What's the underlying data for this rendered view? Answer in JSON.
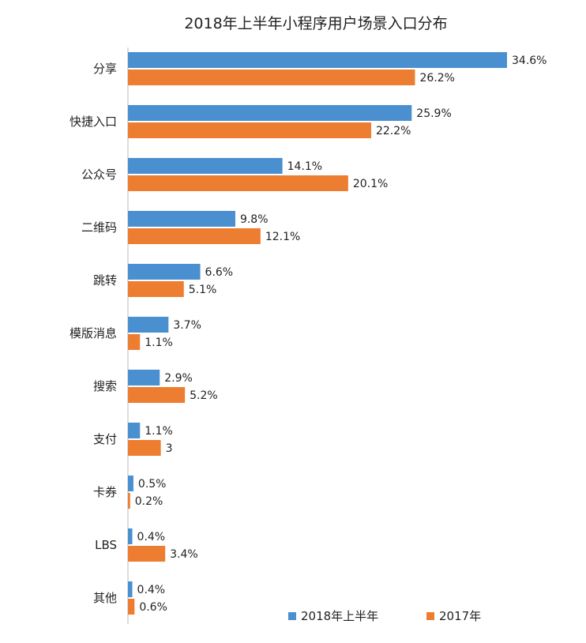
{
  "chart_data": {
    "type": "bar",
    "orientation": "horizontal",
    "title": "2018年上半年小程序用户场景入口分布",
    "categories": [
      "分享",
      "快捷入口",
      "公众号",
      "二维码",
      "跳转",
      "模版消息",
      "搜索",
      "支付",
      "卡券",
      "LBS",
      "其他"
    ],
    "series": [
      {
        "name": "2018年上半年",
        "color": "#4a8fd0",
        "values": [
          34.6,
          25.9,
          14.1,
          9.8,
          6.6,
          3.7,
          2.9,
          1.1,
          0.5,
          0.4,
          0.4
        ],
        "labels": [
          "34.6%",
          "25.9%",
          "14.1%",
          "9.8%",
          "6.6%",
          "3.7%",
          "2.9%",
          "1.1%",
          "0.5%",
          "0.4%",
          "0.4%"
        ]
      },
      {
        "name": "2017年",
        "color": "#ed7d31",
        "values": [
          26.2,
          22.2,
          20.1,
          12.1,
          5.1,
          1.1,
          5.2,
          3,
          0.2,
          3.4,
          0.6
        ],
        "labels": [
          "26.2%",
          "22.2%",
          "20.1%",
          "12.1%",
          "5.1%",
          "1.1%",
          "5.2%",
          "3",
          "0.2%",
          "3.4%",
          "0.6%"
        ]
      }
    ],
    "xlim": [
      0,
      35
    ],
    "grid": false,
    "legend_position": "bottom-right"
  }
}
